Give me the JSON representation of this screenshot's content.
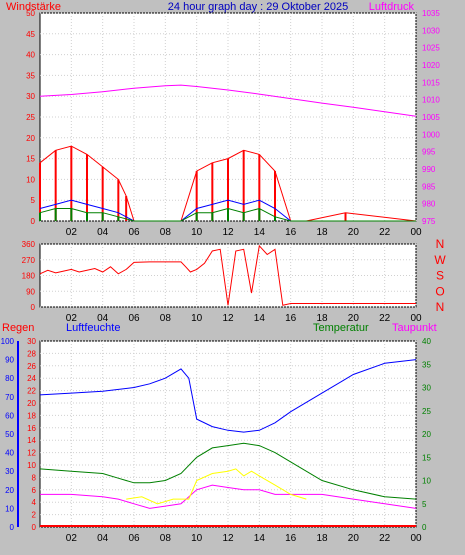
{
  "chart_data": [
    {
      "type": "line",
      "title": "24 hour graph day : 29 Oktober 2025",
      "left_label": "Windstärke",
      "right_label": "Luftdruck",
      "x_ticks": [
        "02",
        "04",
        "06",
        "08",
        "10",
        "12",
        "14",
        "16",
        "18",
        "20",
        "22",
        "00"
      ],
      "y_left": {
        "range": [
          0,
          50
        ],
        "ticks": [
          "0",
          "5",
          "10",
          "15",
          "20",
          "25",
          "30",
          "35",
          "40",
          "45",
          "50"
        ]
      },
      "y_right": {
        "range": [
          975,
          1035
        ],
        "ticks": [
          "975",
          "980",
          "985",
          "990",
          "995",
          "1000",
          "1005",
          "1010",
          "1015",
          "1020",
          "1025",
          "1030",
          "1035"
        ]
      },
      "series": [
        {
          "color": "#ff00ff",
          "axis": "right",
          "x": [
            0,
            2,
            4,
            6,
            8,
            9,
            10,
            12,
            14,
            16,
            18,
            20,
            22,
            24
          ],
          "y": [
            1011,
            1011.5,
            1012.3,
            1013.3,
            1014,
            1014.2,
            1013.8,
            1012.8,
            1011.6,
            1010.3,
            1009,
            1007.8,
            1006.5,
            1005.2
          ]
        },
        {
          "color": "#ff0000",
          "axis": "left",
          "bars": true,
          "x": [
            0,
            1,
            2,
            3,
            4,
            5,
            5.5,
            6,
            9,
            10,
            11,
            12,
            13,
            14,
            15,
            16,
            17,
            19.5,
            24
          ],
          "y": [
            14,
            17,
            18,
            16,
            13,
            10,
            6,
            0,
            0,
            12,
            14,
            15,
            17,
            16,
            12,
            0,
            0,
            2,
            0
          ]
        },
        {
          "color": "#0000ff",
          "axis": "left",
          "x": [
            0,
            1,
            2,
            3,
            4,
            5,
            6,
            9,
            10,
            11,
            12,
            13,
            14,
            15,
            16,
            17,
            24
          ],
          "y": [
            3,
            4,
            5,
            4,
            3,
            2,
            0,
            0,
            3,
            4,
            5,
            4,
            5,
            3,
            0,
            0,
            0
          ]
        },
        {
          "color": "#008000",
          "axis": "left",
          "bars": true,
          "x": [
            0,
            1,
            2,
            3,
            4,
            5,
            6,
            9,
            10,
            11,
            12,
            13,
            14,
            15,
            16,
            24
          ],
          "y": [
            2,
            3,
            3,
            2,
            2,
            1,
            0,
            0,
            2,
            2,
            3,
            2,
            3,
            1,
            0,
            0
          ]
        }
      ]
    },
    {
      "type": "line",
      "right_label_letters": [
        "N",
        "W",
        "S",
        "O",
        "N"
      ],
      "y_left": {
        "range": [
          0,
          360
        ],
        "ticks": [
          "0",
          "90",
          "180",
          "270",
          "360"
        ]
      },
      "series": [
        {
          "color": "#ff0000",
          "x": [
            0,
            0.5,
            1,
            1.5,
            2,
            2.5,
            3,
            3.5,
            4,
            4.5,
            5,
            5.5,
            6,
            7,
            8,
            9,
            9.3,
            9.6,
            10,
            10.5,
            11,
            11.5,
            12,
            12.5,
            13,
            13.5,
            14,
            14.5,
            15,
            15.5,
            16,
            17,
            24
          ],
          "y": [
            190,
            210,
            195,
            205,
            215,
            200,
            210,
            220,
            200,
            230,
            190,
            215,
            255,
            258,
            258,
            258,
            230,
            200,
            215,
            250,
            320,
            330,
            10,
            320,
            330,
            80,
            350,
            300,
            330,
            10,
            20,
            20,
            20
          ]
        }
      ]
    },
    {
      "type": "line",
      "labels": [
        "Regen",
        "Luftfeuchte",
        "Temperatur",
        "Taupunkt"
      ],
      "y_regen": {
        "range": [
          0,
          30
        ],
        "ticks": [
          "0",
          "2",
          "4",
          "6",
          "8",
          "10",
          "12",
          "14",
          "16",
          "18",
          "20",
          "22",
          "24",
          "26",
          "28",
          "30"
        ]
      },
      "y_humidity": {
        "range": [
          0,
          100
        ],
        "ticks": [
          "0",
          "10",
          "20",
          "30",
          "40",
          "50",
          "60",
          "70",
          "80",
          "90",
          "100"
        ]
      },
      "y_temperature": {
        "range": [
          0,
          40
        ],
        "ticks": [
          "0",
          "5",
          "10",
          "15",
          "20",
          "25",
          "30",
          "35",
          "40"
        ]
      },
      "series": [
        {
          "color": "#0000ff",
          "axis": "humidity",
          "x": [
            0,
            2,
            4,
            6,
            7,
            8,
            9,
            9.5,
            10,
            11,
            12,
            13,
            14,
            15,
            16,
            18,
            20,
            22,
            24
          ],
          "y": [
            71,
            72,
            73,
            75,
            77,
            80,
            85,
            80,
            58,
            54,
            52,
            51,
            52,
            56,
            62,
            72,
            82,
            88,
            90
          ]
        },
        {
          "color": "#008000",
          "axis": "temperature",
          "x": [
            0,
            2,
            4,
            5,
            6,
            7,
            8,
            9,
            10,
            11,
            12,
            13,
            14,
            15,
            16,
            18,
            20,
            22,
            24
          ],
          "y": [
            12.5,
            12,
            11.5,
            10.5,
            9.5,
            9.5,
            10,
            11.5,
            15,
            17,
            17.5,
            18,
            17.5,
            16,
            14,
            10,
            8,
            6.5,
            6
          ]
        },
        {
          "color": "#ff00ff",
          "axis": "temperature",
          "x": [
            0,
            2,
            4,
            5,
            6,
            7,
            8,
            9,
            10,
            11,
            12,
            13,
            14,
            15,
            16,
            18,
            20,
            22,
            24
          ],
          "y": [
            7,
            7,
            6.5,
            6,
            5,
            4,
            4.5,
            5,
            8,
            9,
            8.5,
            8,
            8,
            7,
            7,
            7,
            6,
            5,
            4
          ]
        },
        {
          "color": "#ffff00",
          "axis": "temperature",
          "x": [
            5.5,
            6.5,
            7.5,
            8.5,
            9.5,
            10,
            11,
            12,
            12.5,
            13,
            13.5,
            14,
            15,
            16,
            17
          ],
          "y": [
            6,
            6.5,
            5,
            6,
            6,
            10,
            11.5,
            12,
            12.5,
            11,
            12,
            11,
            9,
            7,
            6
          ]
        }
      ]
    }
  ]
}
